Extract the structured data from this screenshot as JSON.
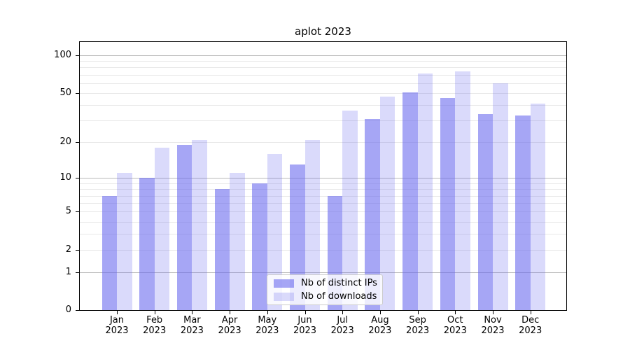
{
  "title": "aplot 2023",
  "year_label": "2023",
  "chart_data": {
    "type": "bar",
    "title": "aplot 2023",
    "categories": [
      "Jan",
      "Feb",
      "Mar",
      "Apr",
      "May",
      "Jun",
      "Jul",
      "Aug",
      "Sep",
      "Oct",
      "Nov",
      "Dec"
    ],
    "category_year": "2023",
    "series": [
      {
        "name": "Nb of distinct IPs",
        "values": [
          7,
          10,
          19,
          8,
          9,
          13,
          7,
          31,
          51,
          46,
          34,
          33
        ]
      },
      {
        "name": "Nb of downloads",
        "values": [
          11,
          18,
          21,
          11,
          16,
          21,
          36,
          47,
          72,
          75,
          60,
          41
        ]
      }
    ],
    "yscale": "log1p",
    "ylim": [
      0,
      127
    ],
    "yticks": [
      {
        "value": 100,
        "label": "100"
      },
      {
        "value": 50,
        "label": "50"
      },
      {
        "value": 20,
        "label": "20"
      },
      {
        "value": 10,
        "label": "10"
      },
      {
        "value": 5,
        "label": "5"
      },
      {
        "value": 2,
        "label": "2"
      },
      {
        "value": 1,
        "label": "1"
      },
      {
        "value": 0,
        "label": "0"
      }
    ],
    "grid": {
      "major_values": [
        1,
        10,
        100
      ],
      "minor_values": [
        2,
        3,
        4,
        5,
        6,
        7,
        8,
        9,
        20,
        30,
        40,
        50,
        60,
        70,
        80,
        90
      ]
    },
    "legend_position": "lower center",
    "colors": {
      "bar_base": "#6666ee",
      "series1_alpha": 0.58,
      "series2_alpha": 0.24,
      "grid_major": "#b9b9b9",
      "grid_minor": "#e8e8e8",
      "axis": "#000000"
    }
  }
}
